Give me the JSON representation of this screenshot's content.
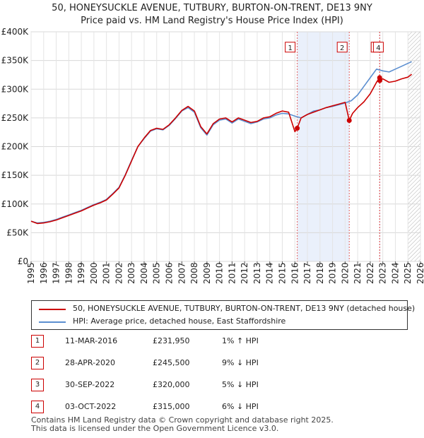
{
  "title_line1": "50, HONEYSUCKLE AVENUE, TUTBURY, BURTON-ON-TRENT, DE13 9NY",
  "title_line2": "Price paid vs. HM Land Registry's House Price Index (HPI)",
  "chart_data": {
    "type": "line",
    "xlim": [
      1995,
      2026
    ],
    "ylim": [
      0,
      400000
    ],
    "yticks": [
      {
        "value": 0,
        "label": "£0"
      },
      {
        "value": 50000,
        "label": "£50K"
      },
      {
        "value": 100000,
        "label": "£100K"
      },
      {
        "value": 150000,
        "label": "£150K"
      },
      {
        "value": 200000,
        "label": "£200K"
      },
      {
        "value": 250000,
        "label": "£250K"
      },
      {
        "value": 300000,
        "label": "£300K"
      },
      {
        "value": 350000,
        "label": "£350K"
      },
      {
        "value": 400000,
        "label": "£400K"
      }
    ],
    "xticks": [
      "1995",
      "1996",
      "1997",
      "1998",
      "1999",
      "2000",
      "2001",
      "2002",
      "2003",
      "2004",
      "2005",
      "2006",
      "2007",
      "2008",
      "2009",
      "2010",
      "2011",
      "2012",
      "2013",
      "2014",
      "2015",
      "2016",
      "2017",
      "2018",
      "2019",
      "2020",
      "2021",
      "2022",
      "2023",
      "2024",
      "2025",
      "2026"
    ],
    "grid": true,
    "shaded_periods": [
      [
        2016.19,
        2020.33
      ],
      [
        2022.75,
        2022.76
      ]
    ],
    "future_hatch_from": 2025.0,
    "series": [
      {
        "name": "50, HONEYSUCKLE AVENUE, TUTBURY, BURTON-ON-TRENT, DE13 9NY (detached house)",
        "color": "#cc0000",
        "x": [
          1995.0,
          1995.5,
          1996.0,
          1996.5,
          1997.0,
          1997.5,
          1998.0,
          1998.5,
          1999.0,
          1999.5,
          2000.0,
          2000.5,
          2001.0,
          2001.5,
          2002.0,
          2002.5,
          2003.0,
          2003.5,
          2004.0,
          2004.5,
          2005.0,
          2005.5,
          2006.0,
          2006.5,
          2007.0,
          2007.5,
          2008.0,
          2008.5,
          2009.0,
          2009.5,
          2010.0,
          2010.5,
          2011.0,
          2011.5,
          2012.0,
          2012.5,
          2013.0,
          2013.5,
          2014.0,
          2014.5,
          2015.0,
          2015.5,
          2016.0,
          2016.19,
          2016.5,
          2017.0,
          2017.5,
          2018.0,
          2018.5,
          2019.0,
          2019.5,
          2020.0,
          2020.33,
          2020.6,
          2021.0,
          2021.5,
          2022.0,
          2022.5,
          2022.75,
          2022.76,
          2023.0,
          2023.5,
          2024.0,
          2024.5,
          2025.0,
          2025.3
        ],
        "values": [
          70000,
          66000,
          67000,
          69000,
          72000,
          76000,
          80000,
          84000,
          88000,
          93000,
          98000,
          102000,
          107000,
          117000,
          128000,
          150000,
          175000,
          200000,
          215000,
          228000,
          232000,
          230000,
          238000,
          250000,
          263000,
          270000,
          262000,
          235000,
          222000,
          240000,
          248000,
          250000,
          243000,
          250000,
          246000,
          242000,
          244000,
          250000,
          252000,
          258000,
          262000,
          260000,
          226000,
          231950,
          250000,
          256000,
          260000,
          264000,
          268000,
          271000,
          274000,
          277000,
          245500,
          258000,
          268000,
          278000,
          292000,
          312000,
          320000,
          315000,
          318000,
          312000,
          314000,
          318000,
          321000,
          326000
        ]
      },
      {
        "name": "HPI: Average price, detached house, East Staffordshire",
        "color": "#5b8ed0",
        "x": [
          1995.0,
          1995.5,
          1996.0,
          1996.5,
          1997.0,
          1997.5,
          1998.0,
          1998.5,
          1999.0,
          1999.5,
          2000.0,
          2000.5,
          2001.0,
          2001.5,
          2002.0,
          2002.5,
          2003.0,
          2003.5,
          2004.0,
          2004.5,
          2005.0,
          2005.5,
          2006.0,
          2006.5,
          2007.0,
          2007.5,
          2008.0,
          2008.5,
          2009.0,
          2009.5,
          2010.0,
          2010.5,
          2011.0,
          2011.5,
          2012.0,
          2012.5,
          2013.0,
          2013.5,
          2014.0,
          2014.5,
          2015.0,
          2015.5,
          2016.0,
          2016.5,
          2017.0,
          2017.5,
          2018.0,
          2018.5,
          2019.0,
          2019.5,
          2020.0,
          2020.5,
          2021.0,
          2021.5,
          2022.0,
          2022.5,
          2023.0,
          2023.5,
          2024.0,
          2024.5,
          2025.0,
          2025.3
        ],
        "values": [
          70000,
          67000,
          68000,
          70000,
          73000,
          77000,
          81000,
          85000,
          89000,
          94000,
          99000,
          103000,
          108000,
          118000,
          129000,
          151000,
          176000,
          200000,
          214000,
          227000,
          231000,
          229000,
          237000,
          249000,
          262000,
          268000,
          260000,
          233000,
          220000,
          238000,
          246000,
          248000,
          241000,
          248000,
          244000,
          240000,
          243000,
          248000,
          250000,
          255000,
          258000,
          257000,
          253000,
          250000,
          256000,
          262000,
          264000,
          268000,
          270000,
          273000,
          276000,
          280000,
          290000,
          305000,
          320000,
          335000,
          332000,
          330000,
          335000,
          340000,
          345000,
          348000
        ]
      }
    ],
    "markers": [
      {
        "id": "1",
        "x": 2016.19,
        "y": 231950,
        "label_y": 372000
      },
      {
        "id": "2",
        "x": 2020.33,
        "y": 245500,
        "label_y": 372000
      },
      {
        "id": "3",
        "x": 2022.75,
        "y": 320000,
        "label_y": 372000
      },
      {
        "id": "4",
        "x": 2022.76,
        "y": 315000,
        "label_y": 372000
      }
    ]
  },
  "legend": [
    {
      "label": "50, HONEYSUCKLE AVENUE, TUTBURY, BURTON-ON-TRENT, DE13 9NY (detached house)",
      "color": "#cc0000"
    },
    {
      "label": "HPI: Average price, detached house, East Staffordshire",
      "color": "#5b8ed0"
    }
  ],
  "transactions": [
    {
      "num": "1",
      "date": "11-MAR-2016",
      "price": "£231,950",
      "hpi": "1% ↑ HPI"
    },
    {
      "num": "2",
      "date": "28-APR-2020",
      "price": "£245,500",
      "hpi": "9% ↓ HPI"
    },
    {
      "num": "3",
      "date": "30-SEP-2022",
      "price": "£320,000",
      "hpi": "5% ↓ HPI"
    },
    {
      "num": "4",
      "date": "03-OCT-2022",
      "price": "£315,000",
      "hpi": "6% ↓ HPI"
    }
  ],
  "footer_line1": "Contains HM Land Registry data © Crown copyright and database right 2025.",
  "footer_line2": "This data is licensed under the Open Government Licence v3.0."
}
